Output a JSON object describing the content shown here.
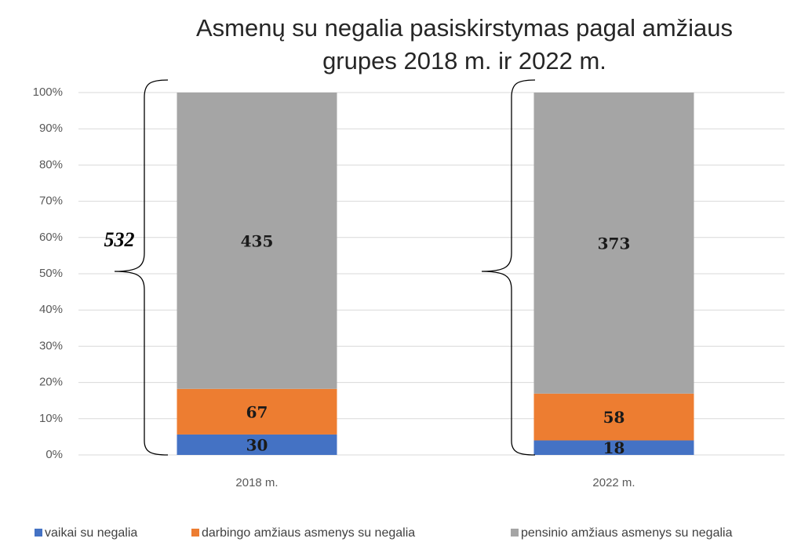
{
  "chart_data": {
    "type": "bar",
    "stacking": "percent",
    "title": [
      "Asmenų su negalia pasiskirstymas pagal amžiaus",
      "grupes 2018 m. ir 2022 m."
    ],
    "categories": [
      "2018 m.",
      "2022 m."
    ],
    "series": [
      {
        "name": "vaikai su negalia",
        "color": "#4472c4",
        "values": [
          30,
          18
        ]
      },
      {
        "name": "darbingo amžiaus asmenys su negalia",
        "color": "#ed7d31",
        "values": [
          67,
          58
        ]
      },
      {
        "name": "pensinio amžiaus asmenys su negalia",
        "color": "#a5a5a5",
        "values": [
          435,
          373
        ]
      }
    ],
    "ylim": [
      0,
      100
    ],
    "yticks": [
      {
        "value": 0,
        "label": "0%"
      },
      {
        "value": 10,
        "label": "10%"
      },
      {
        "value": 20,
        "label": "20%"
      },
      {
        "value": 30,
        "label": "30%"
      },
      {
        "value": 40,
        "label": "40%"
      },
      {
        "value": 50,
        "label": "50%"
      },
      {
        "value": 60,
        "label": "60%"
      },
      {
        "value": 70,
        "label": "70%"
      },
      {
        "value": 80,
        "label": "80%"
      },
      {
        "value": 90,
        "label": "90%"
      },
      {
        "value": 100,
        "label": "100%"
      }
    ],
    "grid": true,
    "legend": "bottom",
    "annotations": [
      {
        "text": "532"
      }
    ]
  }
}
